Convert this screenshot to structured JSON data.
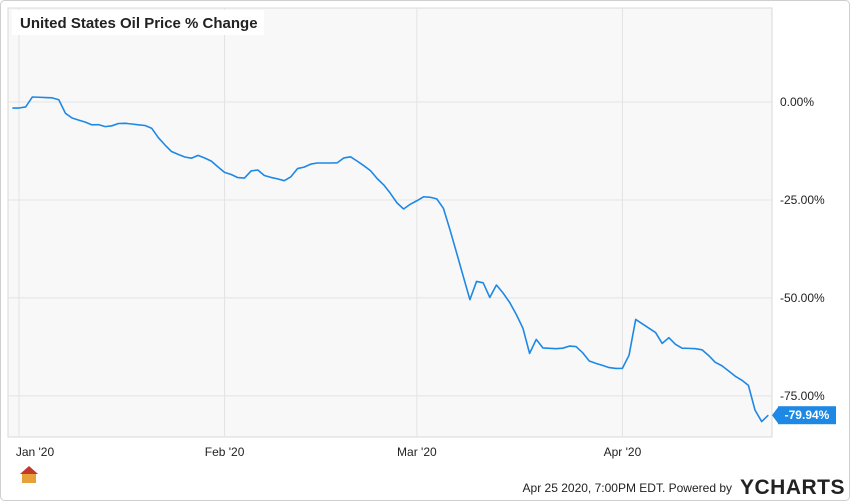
{
  "chart_data": {
    "type": "line",
    "title": "United States Oil Price % Change",
    "categories": [
      null,
      "Jan '20",
      null,
      null,
      null,
      null,
      null,
      null,
      null,
      null,
      null,
      null,
      null,
      null,
      null,
      null,
      null,
      null,
      null,
      null,
      null,
      null,
      null,
      null,
      null,
      null,
      null,
      null,
      null,
      null,
      null,
      null,
      "Feb '20",
      null,
      null,
      null,
      null,
      null,
      null,
      null,
      null,
      null,
      null,
      null,
      null,
      null,
      null,
      null,
      null,
      null,
      null,
      null,
      null,
      null,
      null,
      null,
      null,
      null,
      null,
      null,
      null,
      "Mar '20",
      null,
      null,
      null,
      null,
      null,
      null,
      null,
      null,
      null,
      null,
      null,
      null,
      null,
      null,
      null,
      null,
      null,
      null,
      null,
      null,
      null,
      null,
      null,
      null,
      null,
      null,
      null,
      null,
      null,
      null,
      "Apr '20",
      null,
      null,
      null,
      null,
      null,
      null,
      null,
      null,
      null,
      null,
      null,
      null,
      null,
      null,
      null,
      null,
      null,
      null,
      null,
      null,
      null,
      null
    ],
    "values": [
      -1.53,
      -1.53,
      -1.25,
      1.28,
      1.22,
      1.15,
      1.07,
      0.59,
      -2.88,
      -4.08,
      -4.62,
      -5.13,
      -5.82,
      -5.77,
      -6.28,
      -6.07,
      -5.48,
      -5.43,
      -5.61,
      -5.82,
      -5.99,
      -6.68,
      -9.08,
      -10.94,
      -12.63,
      -13.37,
      -14.03,
      -14.34,
      -13.62,
      -14.29,
      -15.08,
      -16.56,
      -17.96,
      -18.49,
      -19.29,
      -19.41,
      -17.58,
      -17.35,
      -18.75,
      -19.24,
      -19.62,
      -20.08,
      -19.08,
      -16.99,
      -16.61,
      -15.84,
      -15.56,
      -15.56,
      -15.56,
      -15.51,
      -14.26,
      -13.98,
      -15.08,
      -16.25,
      -17.5,
      -19.52,
      -21.15,
      -23.29,
      -25.74,
      -27.3,
      -26.1,
      -25.2,
      -24.18,
      -24.31,
      -24.72,
      -27.12,
      -32.65,
      -38.55,
      -44.52,
      -50.43,
      -45.79,
      -46.15,
      -49.87,
      -46.71,
      -48.75,
      -51.17,
      -54.24,
      -57.76,
      -64.16,
      -60.59,
      -62.76,
      -62.86,
      -62.96,
      -62.83,
      -62.3,
      -62.42,
      -63.98,
      -66.1,
      -66.71,
      -67.22,
      -67.78,
      -68.01,
      -67.96,
      -64.62,
      -55.49,
      -56.61,
      -57.73,
      -58.85,
      -61.61,
      -60.15,
      -61.84,
      -62.83,
      -62.88,
      -62.96,
      -63.24,
      -64.69,
      -66.43,
      -67.32,
      -68.62,
      -69.97,
      -70.99,
      -72.32,
      -78.65,
      -81.56,
      -79.94
    ],
    "value_labels": [
      null,
      null,
      null,
      null,
      null,
      null,
      null,
      null,
      null,
      null,
      null,
      null,
      null,
      null,
      null,
      null,
      null,
      null,
      null,
      null,
      null,
      null,
      null,
      null,
      null,
      null,
      null,
      null,
      null,
      null,
      null,
      null,
      null,
      null,
      null,
      null,
      null,
      null,
      null,
      null,
      null,
      null,
      null,
      null,
      null,
      null,
      null,
      null,
      null,
      null,
      null,
      null,
      null,
      null,
      null,
      null,
      null,
      null,
      null,
      null,
      null,
      null,
      null,
      null,
      null,
      null,
      null,
      null,
      null,
      null,
      null,
      null,
      null,
      null,
      null,
      null,
      null,
      null,
      null,
      null,
      null,
      null,
      null,
      null,
      null,
      null,
      null,
      null,
      null,
      null,
      null,
      null,
      null,
      null,
      null,
      null,
      null,
      null,
      null,
      null,
      null,
      null,
      null,
      null,
      null,
      null,
      null,
      null,
      null,
      null,
      null,
      null,
      null,
      null,
      "-79.94%"
    ],
    "color": "#1e88e5",
    "ylim": [
      -85.5,
      24
    ],
    "yticks": [
      {
        "value": 0,
        "label": "0.00%"
      },
      {
        "value": -25,
        "label": "-25.00%"
      },
      {
        "value": -50,
        "label": "-50.00%"
      },
      {
        "value": -75,
        "label": "-75.00%"
      }
    ],
    "grid": true
  },
  "footer": {
    "timestamp": "Apr 25 2020, 7:00PM EDT.  Powered by",
    "brand": "YCHARTS"
  }
}
